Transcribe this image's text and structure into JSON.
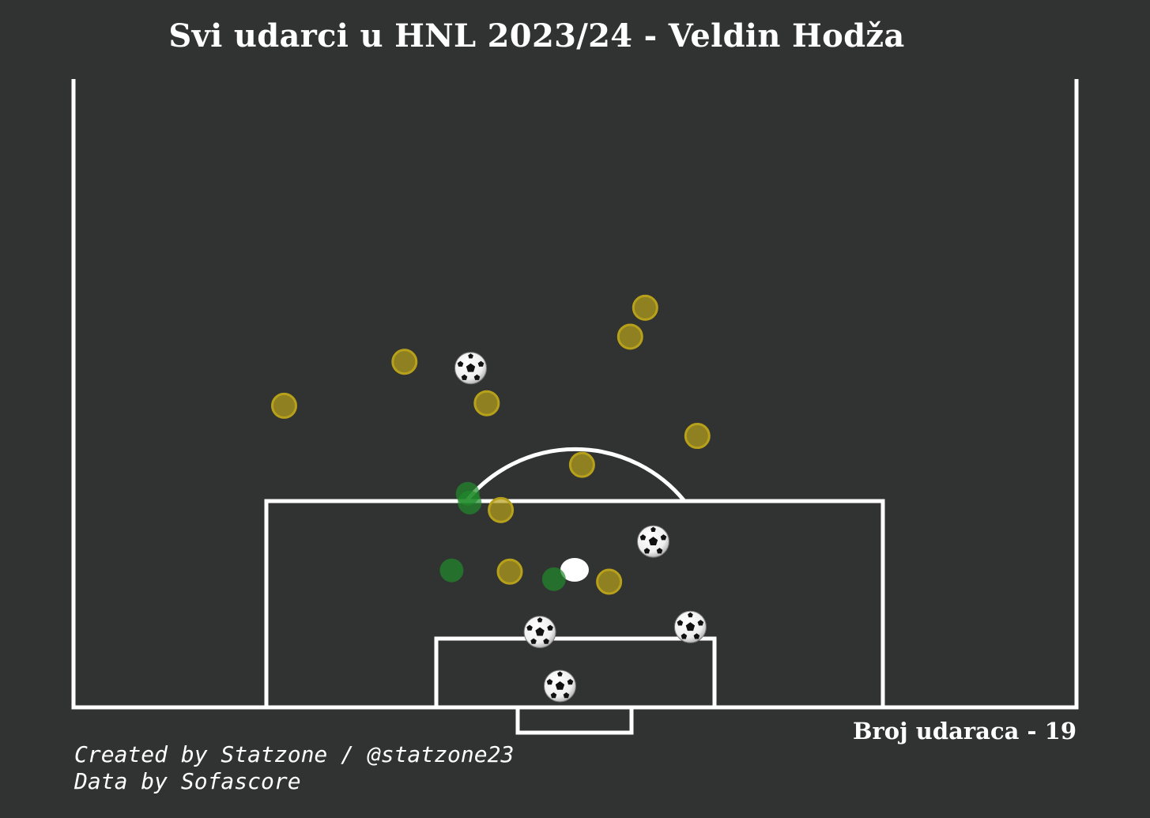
{
  "title": "Svi udarci u HNL 2023/24 - Veldin Hodža",
  "shot_count_label": "Broj udaraca - 19",
  "credits": {
    "line1": "Created by Statzone / @statzone23",
    "line2": "Data by Sofascore"
  },
  "colors": {
    "background": "#313332",
    "lines": "#ffffff",
    "miss": "#b8a11a",
    "blocked": "#1f8a2a",
    "goal": "ball-icon"
  },
  "chart_data": {
    "type": "scatter",
    "title": "Svi udarci u HNL 2023/24 - Veldin Hodža",
    "pitch": "half-pitch, vertical, attacking goal at bottom",
    "total_shots": 19,
    "series": [
      {
        "outcome": "miss",
        "points": [
          {
            "x": 21.0,
            "y": 74.0
          },
          {
            "x": 33.0,
            "y": 77.5
          },
          {
            "x": 41.2,
            "y": 74.2
          },
          {
            "x": 55.5,
            "y": 79.5
          },
          {
            "x": 57.0,
            "y": 81.8
          },
          {
            "x": 62.2,
            "y": 71.6
          },
          {
            "x": 50.7,
            "y": 69.3
          },
          {
            "x": 42.6,
            "y": 65.7
          },
          {
            "x": 43.5,
            "y": 60.8
          },
          {
            "x": 53.4,
            "y": 60.0
          }
        ]
      },
      {
        "outcome": "blocked",
        "points": [
          {
            "x": 39.3,
            "y": 67.0
          },
          {
            "x": 39.5,
            "y": 66.3
          },
          {
            "x": 37.7,
            "y": 60.9
          },
          {
            "x": 47.9,
            "y": 60.2
          }
        ]
      },
      {
        "outcome": "goal",
        "points": [
          {
            "x": 39.6,
            "y": 77.0
          },
          {
            "x": 57.8,
            "y": 63.2
          },
          {
            "x": 46.5,
            "y": 56.0
          },
          {
            "x": 61.5,
            "y": 56.4
          },
          {
            "x": 48.5,
            "y": 51.7
          }
        ]
      }
    ]
  }
}
